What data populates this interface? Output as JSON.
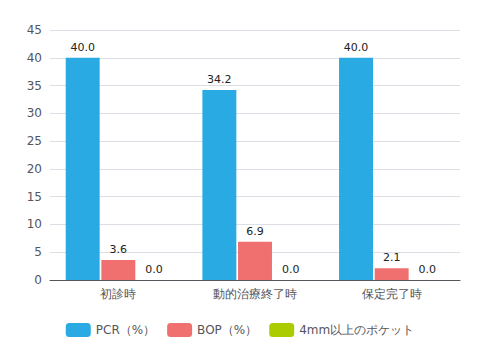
{
  "chart_data": {
    "type": "bar",
    "categories": [
      "初診時",
      "動的治療終了時",
      "保定完了時"
    ],
    "series": [
      {
        "name": "PCR（%）",
        "color": "#29aae2",
        "values": [
          40.0,
          34.2,
          40.0
        ],
        "value_labels": [
          "40.0",
          "34.2",
          "40.0"
        ]
      },
      {
        "name": "BOP（%）",
        "color": "#f07070",
        "values": [
          3.6,
          6.9,
          2.1
        ],
        "value_labels": [
          "3.6",
          "6.9",
          "2.1"
        ]
      },
      {
        "name": "4mm以上のポケット",
        "color": "#aacc00",
        "values": [
          0.0,
          0.0,
          0.0
        ],
        "value_labels": [
          "0.0",
          "0.0",
          "0.0"
        ]
      }
    ],
    "ylim": [
      0,
      45
    ],
    "yticks": [
      0,
      5,
      10,
      15,
      20,
      25,
      30,
      35,
      40,
      45
    ],
    "grid": true,
    "legend": "bottom",
    "data_labels": true
  }
}
